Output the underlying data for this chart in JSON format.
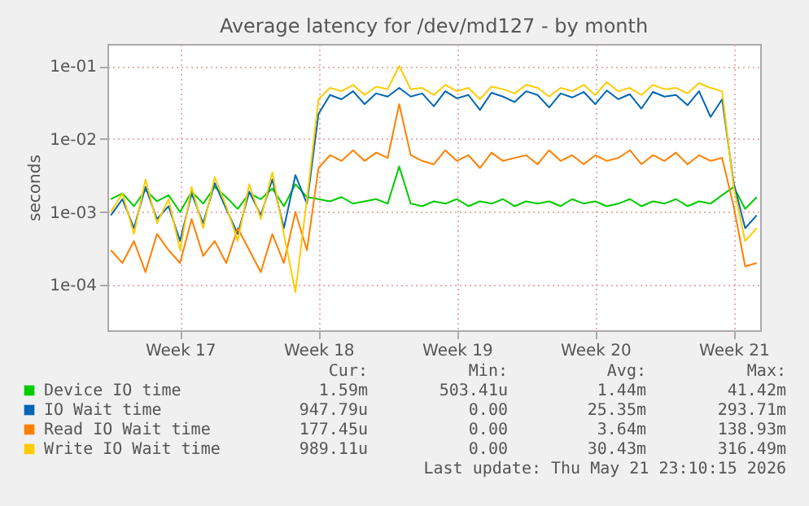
{
  "chart_data": {
    "type": "line",
    "title": "Average latency for /dev/md127 - by month",
    "ylabel": "seconds",
    "categories": [
      null,
      null,
      null,
      null,
      null,
      null,
      "Week 17",
      null,
      null,
      null,
      null,
      null,
      null,
      null,
      null,
      null,
      null,
      null,
      "Week 18",
      null,
      null,
      null,
      null,
      null,
      null,
      null,
      null,
      null,
      null,
      null,
      "Week 19",
      null,
      null,
      null,
      null,
      null,
      null,
      null,
      null,
      null,
      null,
      null,
      "Week 20",
      null,
      null,
      null,
      null,
      null,
      null,
      null,
      null,
      null,
      null,
      null,
      "Week 21",
      null,
      null
    ],
    "series": [
      {
        "name": "Device IO time",
        "color": "#00cc00",
        "values": [
          0.0015,
          0.0018,
          0.0012,
          0.002,
          0.0014,
          0.0017,
          0.001,
          0.0019,
          0.0013,
          0.0022,
          0.0016,
          0.0011,
          0.0018,
          0.0015,
          0.0021,
          0.0012,
          0.0024,
          0.0016,
          0.0015,
          0.0014,
          0.0016,
          0.0013,
          0.0014,
          0.0015,
          0.0013,
          0.0042,
          0.0013,
          0.0012,
          0.0014,
          0.0013,
          0.0015,
          0.0012,
          0.0014,
          0.0013,
          0.0015,
          0.0012,
          0.0014,
          0.0013,
          0.0014,
          0.0012,
          0.0015,
          0.0013,
          0.0014,
          0.0012,
          0.0013,
          0.0015,
          0.0012,
          0.0014,
          0.0013,
          0.0015,
          0.0012,
          0.0014,
          0.0013,
          0.0017,
          0.0022,
          0.0011,
          0.0016
        ]
      },
      {
        "name": "IO Wait time",
        "color": "#0066b3",
        "values": [
          0.0009,
          0.0015,
          0.0006,
          0.0022,
          0.0008,
          0.0012,
          0.0004,
          0.0018,
          0.0007,
          0.0025,
          0.0011,
          0.0005,
          0.0019,
          0.0009,
          0.0028,
          0.0006,
          0.0032,
          0.0013,
          0.022,
          0.04,
          0.035,
          0.045,
          0.03,
          0.042,
          0.038,
          0.05,
          0.038,
          0.042,
          0.028,
          0.045,
          0.036,
          0.04,
          0.025,
          0.043,
          0.038,
          0.032,
          0.045,
          0.04,
          0.027,
          0.042,
          0.037,
          0.044,
          0.03,
          0.046,
          0.035,
          0.041,
          0.026,
          0.044,
          0.038,
          0.04,
          0.029,
          0.045,
          0.02,
          0.035,
          0.0025,
          0.0006,
          0.0009
        ]
      },
      {
        "name": "Read IO Wait time",
        "color": "#ff8000",
        "values": [
          0.0003,
          0.0002,
          0.0004,
          0.00015,
          0.0005,
          0.0003,
          0.0002,
          0.0008,
          0.00025,
          0.0004,
          0.0002,
          0.0006,
          0.0003,
          0.00015,
          0.0005,
          0.0002,
          0.001,
          0.0003,
          0.004,
          0.006,
          0.005,
          0.007,
          0.005,
          0.0065,
          0.0055,
          0.03,
          0.006,
          0.005,
          0.0045,
          0.007,
          0.005,
          0.006,
          0.004,
          0.0065,
          0.005,
          0.0055,
          0.006,
          0.0045,
          0.007,
          0.005,
          0.006,
          0.0045,
          0.006,
          0.005,
          0.0055,
          0.007,
          0.0045,
          0.006,
          0.005,
          0.0065,
          0.0045,
          0.006,
          0.005,
          0.0055,
          0.0012,
          0.00018,
          0.0002
        ]
      },
      {
        "name": "Write IO Wait time",
        "color": "#ffcc00",
        "values": [
          0.001,
          0.0018,
          0.0005,
          0.0028,
          0.0007,
          0.0015,
          0.0003,
          0.0022,
          0.0006,
          0.003,
          0.0012,
          0.0004,
          0.0024,
          0.0008,
          0.0035,
          0.0005,
          8e-05,
          0.0015,
          0.035,
          0.05,
          0.045,
          0.055,
          0.04,
          0.052,
          0.048,
          0.1,
          0.048,
          0.05,
          0.04,
          0.055,
          0.045,
          0.05,
          0.035,
          0.052,
          0.048,
          0.042,
          0.055,
          0.05,
          0.038,
          0.05,
          0.045,
          0.055,
          0.04,
          0.06,
          0.045,
          0.05,
          0.04,
          0.055,
          0.048,
          0.05,
          0.042,
          0.058,
          0.05,
          0.045,
          0.0022,
          0.0004,
          0.0006
        ]
      }
    ],
    "log": true,
    "ylim": [
      2.4e-05,
      0.2
    ],
    "yticks": [
      {
        "value": 0.0001,
        "label": "1e-04"
      },
      {
        "value": 0.001,
        "label": "1e-03"
      },
      {
        "value": 0.01,
        "label": "1e-02"
      },
      {
        "value": 0.1,
        "label": "1e-01"
      }
    ],
    "grid": true,
    "legend": "bottom",
    "marker": "none",
    "line_style": "solid",
    "annotations": [
      "Cur:",
      "Min:",
      "Avg:",
      "Max:",
      "1.59m",
      "503.41u",
      "1.44m",
      "41.42m",
      "947.79u",
      "0.00",
      "25.35m",
      "293.71m",
      "177.45u",
      "0.00",
      "3.64m",
      "138.93m",
      "989.11u",
      "0.00",
      "30.43m",
      "316.49m",
      "Last update: Thu May 21 23:10:15 2026"
    ]
  }
}
